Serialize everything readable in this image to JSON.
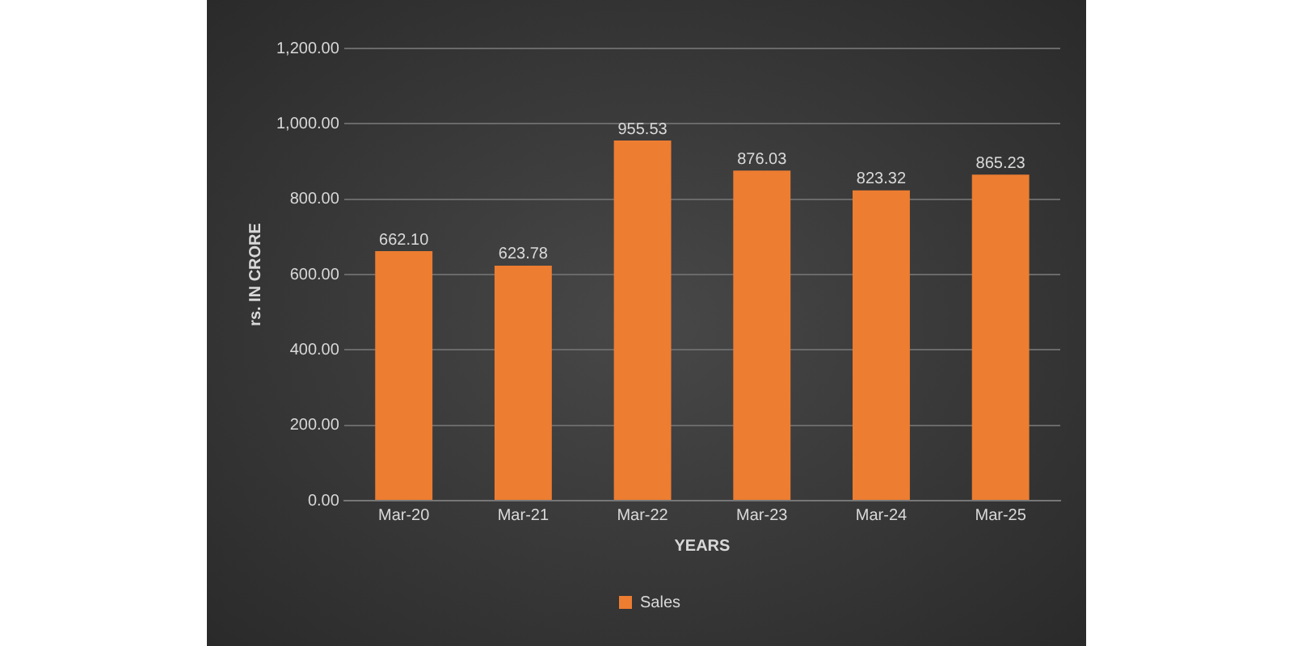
{
  "chart_data": {
    "type": "bar",
    "xlabel": "YEARS",
    "ylabel": "rs. IN CRORE",
    "categories": [
      "Mar-20",
      "Mar-21",
      "Mar-22",
      "Mar-23",
      "Mar-24",
      "Mar-25"
    ],
    "series": [
      {
        "name": "Sales",
        "color": "#ed7d31",
        "values": [
          662.1,
          623.78,
          955.53,
          876.03,
          823.32,
          865.23
        ],
        "value_labels": [
          "662.10",
          "623.78",
          "955.53",
          "876.03",
          "823.32",
          "865.23"
        ]
      }
    ],
    "ylim": [
      0,
      1200
    ],
    "yticks": [
      {
        "value": 0,
        "label": "0.00"
      },
      {
        "value": 200,
        "label": "200.00"
      },
      {
        "value": 400,
        "label": "400.00"
      },
      {
        "value": 600,
        "label": "600.00"
      },
      {
        "value": 800,
        "label": "800.00"
      },
      {
        "value": 1000,
        "label": "1,000.00"
      },
      {
        "value": 1200,
        "label": "1,200.00"
      }
    ],
    "grid": "y",
    "legend": "bottom"
  }
}
